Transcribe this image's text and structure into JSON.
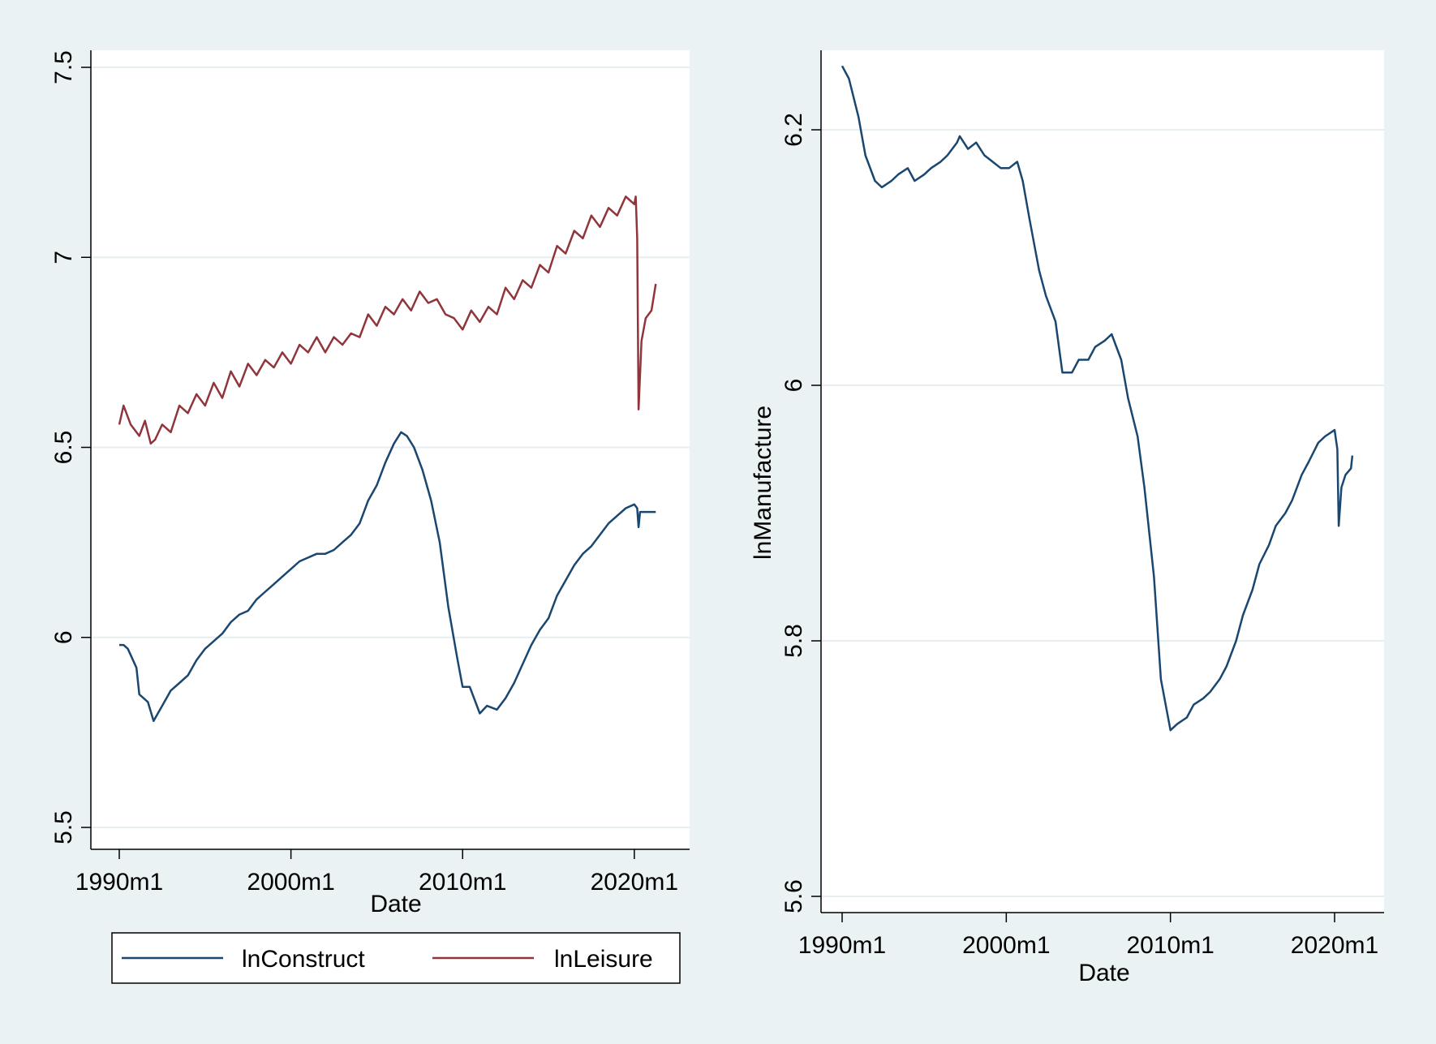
{
  "chart_data": [
    {
      "type": "line",
      "xlabel": "Date",
      "ylabel": "",
      "xlim": [
        "1990m1",
        "2021m4"
      ],
      "ylim": [
        5.5,
        7.5
      ],
      "x_ticks": [
        "1990m1",
        "2000m1",
        "2010m1",
        "2020m1"
      ],
      "y_ticks": [
        "5.5",
        "6",
        "6.5",
        "7",
        "7.5"
      ],
      "grid": true,
      "legend_position": "bottom",
      "series": [
        {
          "name": "lnConstruct",
          "color": "#1a476f",
          "points": [
            [
              "1990m1",
              5.98
            ],
            [
              "1990m4",
              5.98
            ],
            [
              "1990m7",
              5.97
            ],
            [
              "1991m1",
              5.92
            ],
            [
              "1991m3",
              5.85
            ],
            [
              "1991m6",
              5.84
            ],
            [
              "1991m9",
              5.83
            ],
            [
              "1992m1",
              5.78
            ],
            [
              "1992m7",
              5.82
            ],
            [
              "1993m1",
              5.86
            ],
            [
              "1993m7",
              5.88
            ],
            [
              "1994m1",
              5.9
            ],
            [
              "1994m7",
              5.94
            ],
            [
              "1995m1",
              5.97
            ],
            [
              "1995m7",
              5.99
            ],
            [
              "1996m1",
              6.01
            ],
            [
              "1996m7",
              6.04
            ],
            [
              "1997m1",
              6.06
            ],
            [
              "1997m7",
              6.07
            ],
            [
              "1998m1",
              6.1
            ],
            [
              "1998m7",
              6.12
            ],
            [
              "1999m1",
              6.14
            ],
            [
              "1999m7",
              6.16
            ],
            [
              "2000m1",
              6.18
            ],
            [
              "2000m7",
              6.2
            ],
            [
              "2001m1",
              6.21
            ],
            [
              "2001m7",
              6.22
            ],
            [
              "2002m1",
              6.22
            ],
            [
              "2002m7",
              6.23
            ],
            [
              "2003m1",
              6.25
            ],
            [
              "2003m7",
              6.27
            ],
            [
              "2004m1",
              6.3
            ],
            [
              "2004m7",
              6.36
            ],
            [
              "2005m1",
              6.4
            ],
            [
              "2005m7",
              6.46
            ],
            [
              "2006m1",
              6.51
            ],
            [
              "2006m6",
              6.54
            ],
            [
              "2006m10",
              6.53
            ],
            [
              "2007m3",
              6.5
            ],
            [
              "2007m9",
              6.44
            ],
            [
              "2008m3",
              6.36
            ],
            [
              "2008m9",
              6.25
            ],
            [
              "2009m3",
              6.08
            ],
            [
              "2009m9",
              5.95
            ],
            [
              "2010m1",
              5.87
            ],
            [
              "2010m6",
              5.87
            ],
            [
              "2011m1",
              5.8
            ],
            [
              "2011m6",
              5.82
            ],
            [
              "2012m1",
              5.81
            ],
            [
              "2012m7",
              5.84
            ],
            [
              "2013m1",
              5.88
            ],
            [
              "2013m7",
              5.93
            ],
            [
              "2014m1",
              5.98
            ],
            [
              "2014m7",
              6.02
            ],
            [
              "2015m1",
              6.05
            ],
            [
              "2015m7",
              6.11
            ],
            [
              "2016m1",
              6.15
            ],
            [
              "2016m7",
              6.19
            ],
            [
              "2017m1",
              6.22
            ],
            [
              "2017m7",
              6.24
            ],
            [
              "2018m1",
              6.27
            ],
            [
              "2018m7",
              6.3
            ],
            [
              "2019m1",
              6.32
            ],
            [
              "2019m7",
              6.34
            ],
            [
              "2020m1",
              6.35
            ],
            [
              "2020m3",
              6.34
            ],
            [
              "2020m4",
              6.29
            ],
            [
              "2020m5",
              6.33
            ],
            [
              "2020m9",
              6.33
            ],
            [
              "2021m4",
              6.33
            ]
          ]
        },
        {
          "name": "lnLeisure",
          "color": "#90353b",
          "points": [
            [
              "1990m1",
              6.56
            ],
            [
              "1990m4",
              6.61
            ],
            [
              "1990m9",
              6.56
            ],
            [
              "1991m3",
              6.53
            ],
            [
              "1991m7",
              6.57
            ],
            [
              "1991m11",
              6.51
            ],
            [
              "1992m2",
              6.52
            ],
            [
              "1992m7",
              6.56
            ],
            [
              "1993m1",
              6.54
            ],
            [
              "1993m7",
              6.61
            ],
            [
              "1994m1",
              6.59
            ],
            [
              "1994m7",
              6.64
            ],
            [
              "1995m1",
              6.61
            ],
            [
              "1995m7",
              6.67
            ],
            [
              "1996m1",
              6.63
            ],
            [
              "1996m7",
              6.7
            ],
            [
              "1997m1",
              6.66
            ],
            [
              "1997m7",
              6.72
            ],
            [
              "1998m1",
              6.69
            ],
            [
              "1998m7",
              6.73
            ],
            [
              "1999m1",
              6.71
            ],
            [
              "1999m7",
              6.75
            ],
            [
              "2000m1",
              6.72
            ],
            [
              "2000m7",
              6.77
            ],
            [
              "2001m1",
              6.75
            ],
            [
              "2001m7",
              6.79
            ],
            [
              "2002m1",
              6.75
            ],
            [
              "2002m7",
              6.79
            ],
            [
              "2003m1",
              6.77
            ],
            [
              "2003m7",
              6.8
            ],
            [
              "2004m1",
              6.79
            ],
            [
              "2004m7",
              6.85
            ],
            [
              "2005m1",
              6.82
            ],
            [
              "2005m7",
              6.87
            ],
            [
              "2006m1",
              6.85
            ],
            [
              "2006m7",
              6.89
            ],
            [
              "2007m1",
              6.86
            ],
            [
              "2007m7",
              6.91
            ],
            [
              "2008m1",
              6.88
            ],
            [
              "2008m7",
              6.89
            ],
            [
              "2009m1",
              6.85
            ],
            [
              "2009m7",
              6.84
            ],
            [
              "2010m1",
              6.81
            ],
            [
              "2010m7",
              6.86
            ],
            [
              "2011m1",
              6.83
            ],
            [
              "2011m7",
              6.87
            ],
            [
              "2012m1",
              6.85
            ],
            [
              "2012m7",
              6.92
            ],
            [
              "2013m1",
              6.89
            ],
            [
              "2013m7",
              6.94
            ],
            [
              "2014m1",
              6.92
            ],
            [
              "2014m7",
              6.98
            ],
            [
              "2015m1",
              6.96
            ],
            [
              "2015m7",
              7.03
            ],
            [
              "2016m1",
              7.01
            ],
            [
              "2016m7",
              7.07
            ],
            [
              "2017m1",
              7.05
            ],
            [
              "2017m7",
              7.11
            ],
            [
              "2018m1",
              7.08
            ],
            [
              "2018m7",
              7.13
            ],
            [
              "2019m1",
              7.11
            ],
            [
              "2019m7",
              7.16
            ],
            [
              "2020m1",
              7.14
            ],
            [
              "2020m2",
              7.16
            ],
            [
              "2020m3",
              7.05
            ],
            [
              "2020m4",
              6.6
            ],
            [
              "2020m6",
              6.78
            ],
            [
              "2020m9",
              6.84
            ],
            [
              "2021m1",
              6.86
            ],
            [
              "2021m4",
              6.93
            ]
          ]
        }
      ]
    },
    {
      "type": "line",
      "xlabel": "Date",
      "ylabel": "lnManufacture",
      "xlim": [
        "1990m1",
        "2021m2"
      ],
      "ylim": [
        5.6,
        6.25
      ],
      "x_ticks": [
        "1990m1",
        "2000m1",
        "2010m1",
        "2020m1"
      ],
      "y_ticks": [
        "5.6",
        "5.8",
        "6",
        "6.2"
      ],
      "grid": true,
      "series": [
        {
          "name": "lnManufacture",
          "color": "#1a476f",
          "points": [
            [
              "1990m1",
              6.25
            ],
            [
              "1990m6",
              6.24
            ],
            [
              "1991m1",
              6.21
            ],
            [
              "1991m6",
              6.18
            ],
            [
              "1992m1",
              6.16
            ],
            [
              "1992m6",
              6.155
            ],
            [
              "1993m1",
              6.16
            ],
            [
              "1993m6",
              6.165
            ],
            [
              "1994m1",
              6.17
            ],
            [
              "1994m6",
              6.16
            ],
            [
              "1995m1",
              6.165
            ],
            [
              "1995m6",
              6.17
            ],
            [
              "1996m1",
              6.175
            ],
            [
              "1996m6",
              6.18
            ],
            [
              "1997m1",
              6.19
            ],
            [
              "1997m3",
              6.195
            ],
            [
              "1997m9",
              6.185
            ],
            [
              "1998m3",
              6.19
            ],
            [
              "1998m9",
              6.18
            ],
            [
              "1999m3",
              6.175
            ],
            [
              "1999m9",
              6.17
            ],
            [
              "2000m3",
              6.17
            ],
            [
              "2000m9",
              6.175
            ],
            [
              "2001m1",
              6.16
            ],
            [
              "2001m6",
              6.13
            ],
            [
              "2002m1",
              6.09
            ],
            [
              "2002m6",
              6.07
            ],
            [
              "2003m1",
              6.05
            ],
            [
              "2003m6",
              6.01
            ],
            [
              "2004m1",
              6.01
            ],
            [
              "2004m6",
              6.02
            ],
            [
              "2005m1",
              6.02
            ],
            [
              "2005m6",
              6.03
            ],
            [
              "2006m1",
              6.035
            ],
            [
              "2006m6",
              6.04
            ],
            [
              "2007m1",
              6.02
            ],
            [
              "2007m6",
              5.99
            ],
            [
              "2008m1",
              5.96
            ],
            [
              "2008m6",
              5.92
            ],
            [
              "2009m1",
              5.85
            ],
            [
              "2009m6",
              5.77
            ],
            [
              "2010m1",
              5.73
            ],
            [
              "2010m6",
              5.735
            ],
            [
              "2011m1",
              5.74
            ],
            [
              "2011m6",
              5.75
            ],
            [
              "2012m1",
              5.755
            ],
            [
              "2012m6",
              5.76
            ],
            [
              "2013m1",
              5.77
            ],
            [
              "2013m6",
              5.78
            ],
            [
              "2014m1",
              5.8
            ],
            [
              "2014m6",
              5.82
            ],
            [
              "2015m1",
              5.84
            ],
            [
              "2015m6",
              5.86
            ],
            [
              "2016m1",
              5.875
            ],
            [
              "2016m6",
              5.89
            ],
            [
              "2017m1",
              5.9
            ],
            [
              "2017m6",
              5.91
            ],
            [
              "2018m1",
              5.93
            ],
            [
              "2018m6",
              5.94
            ],
            [
              "2019m1",
              5.955
            ],
            [
              "2019m6",
              5.96
            ],
            [
              "2020m1",
              5.965
            ],
            [
              "2020m3",
              5.95
            ],
            [
              "2020m4",
              5.89
            ],
            [
              "2020m6",
              5.92
            ],
            [
              "2020m9",
              5.93
            ],
            [
              "2021m1",
              5.935
            ],
            [
              "2021m2",
              5.945
            ]
          ]
        }
      ]
    }
  ]
}
